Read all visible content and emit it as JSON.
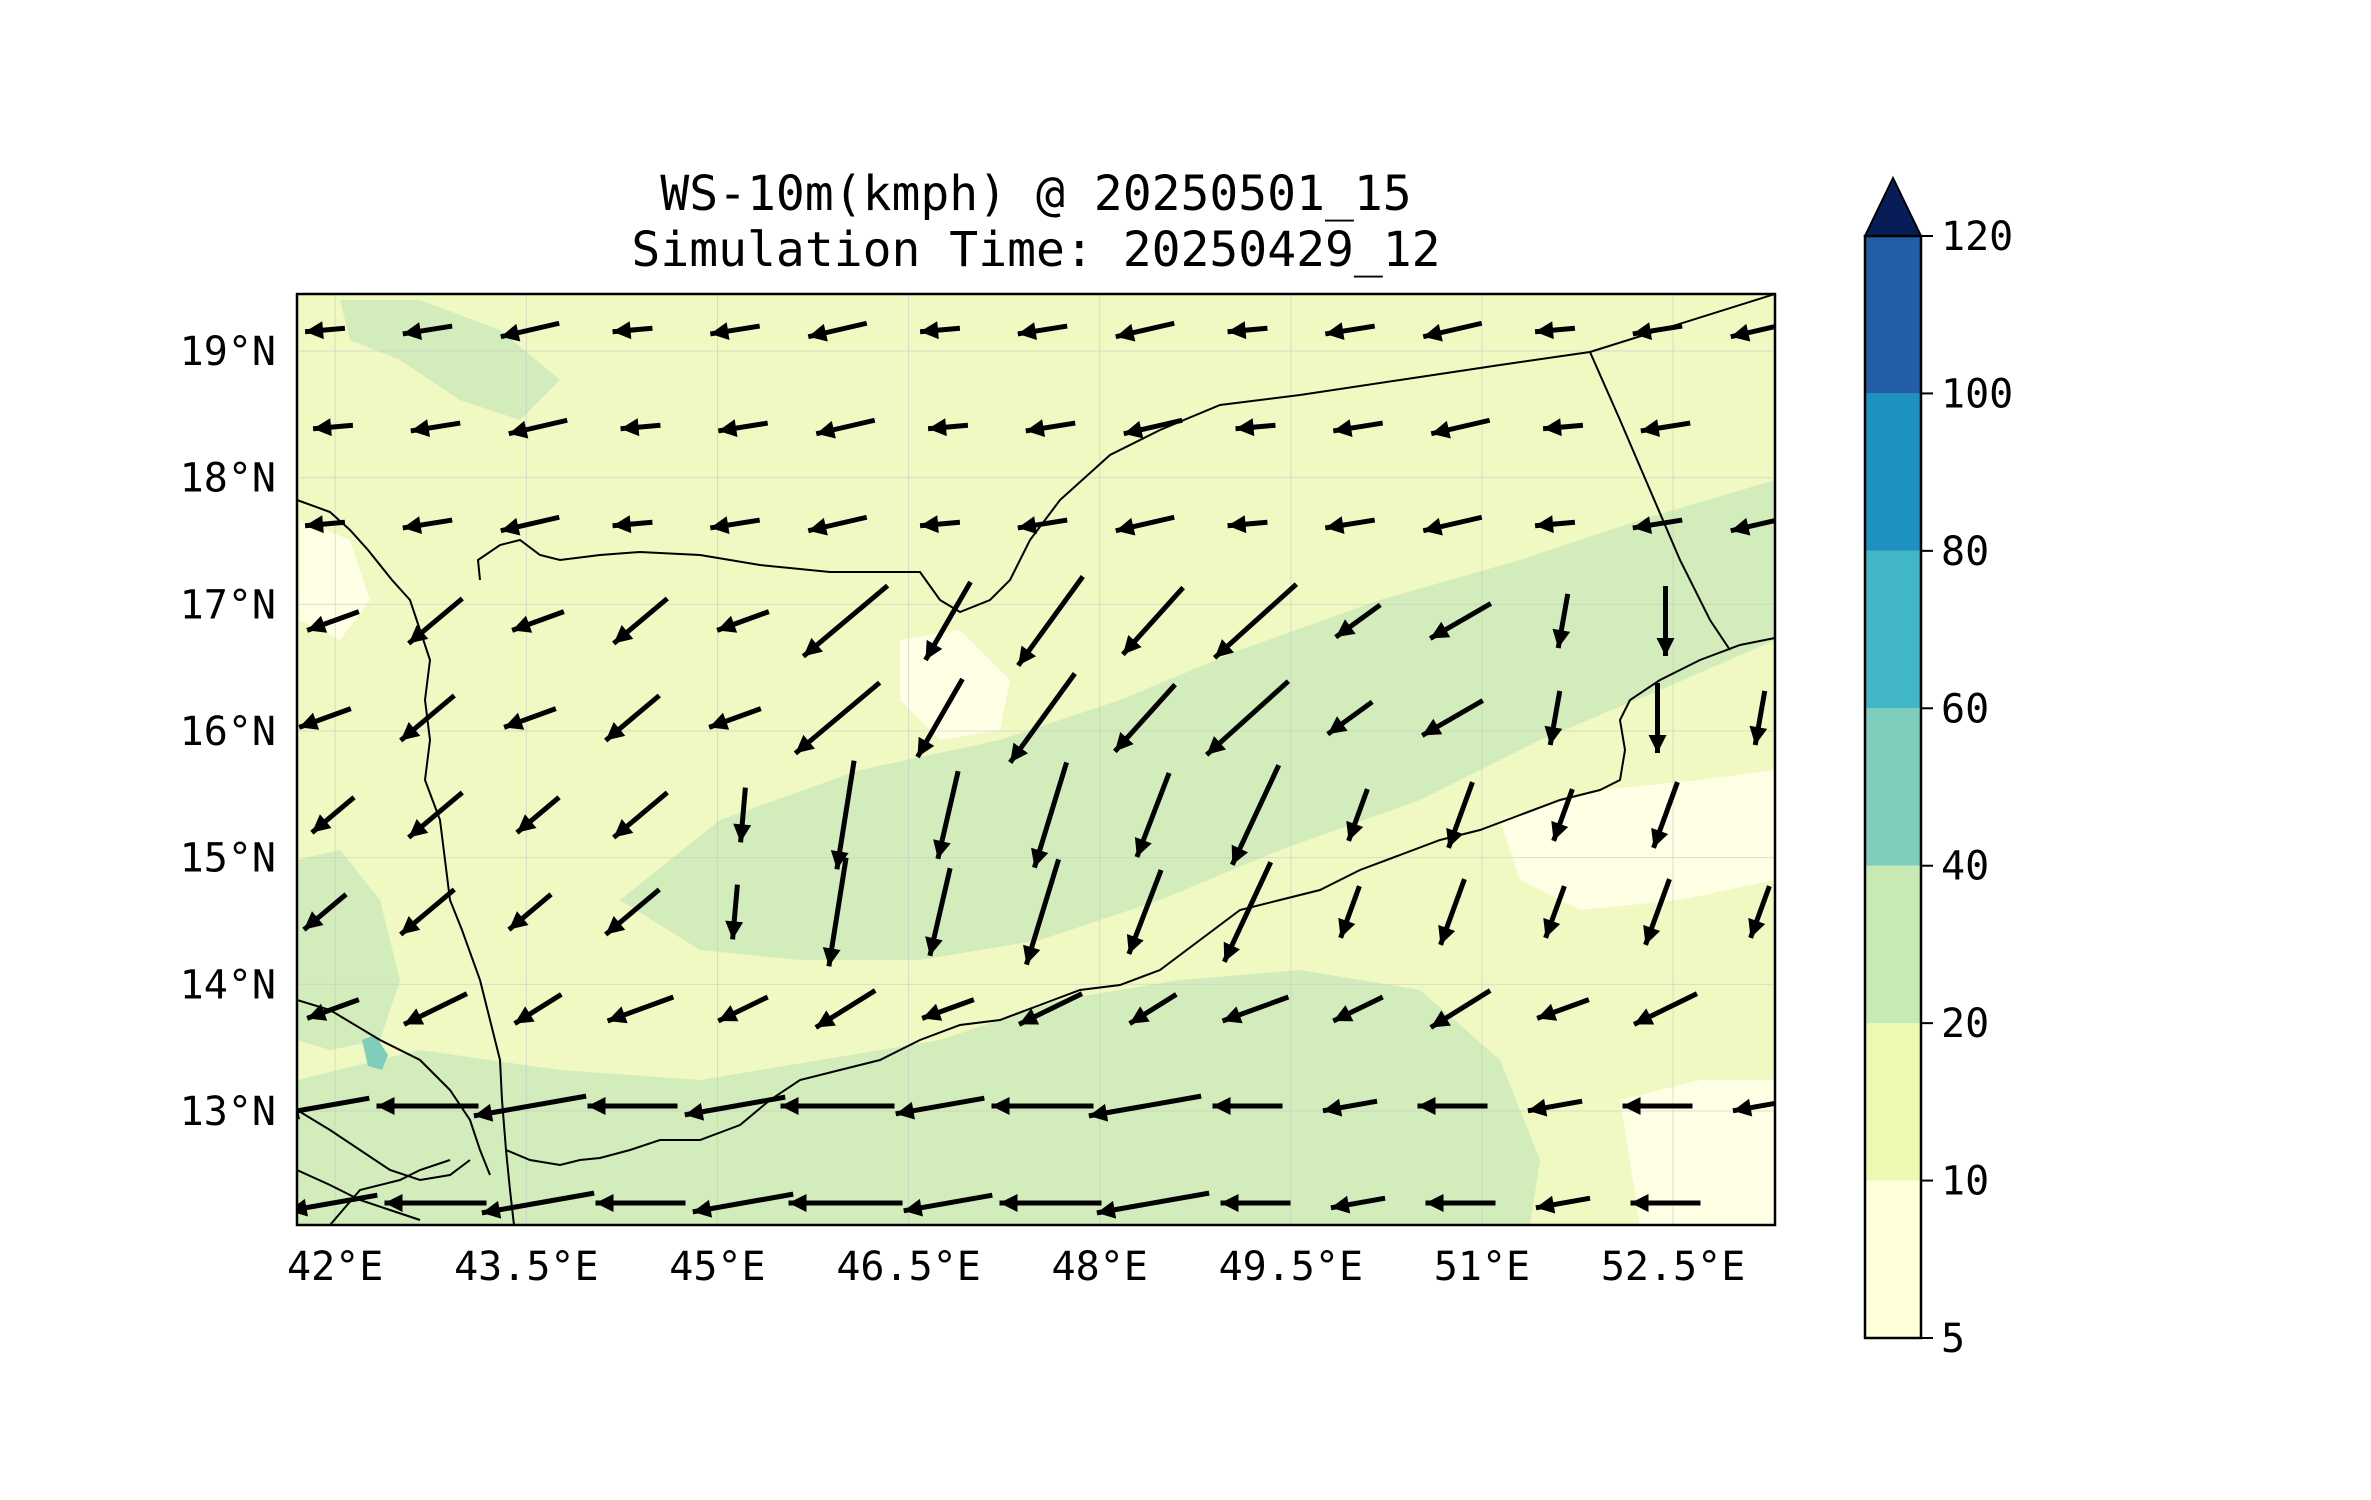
{
  "title": "WS-10m(kmph) @ 20250501_15",
  "subtitle": "Simulation Time: 20250429_12",
  "map": {
    "lon_range": [
      41.7,
      53.3
    ],
    "lat_range": [
      12.1,
      19.45
    ],
    "x_ticks": [
      "42°E",
      "43.5°E",
      "45°E",
      "46.5°E",
      "48°E",
      "49.5°E",
      "51°E",
      "52.5°E"
    ],
    "x_tick_values": [
      42,
      43.5,
      45,
      46.5,
      48,
      49.5,
      51,
      52.5
    ],
    "y_ticks": [
      "19°N",
      "18°N",
      "17°N",
      "16°N",
      "15°N",
      "14°N",
      "13°N"
    ],
    "y_tick_values": [
      19,
      18,
      17,
      16,
      15,
      14,
      13
    ],
    "gridlines": true
  },
  "colorbar": {
    "levels": [
      "5",
      "10",
      "20",
      "40",
      "60",
      "80",
      "100",
      "120"
    ],
    "colors": [
      "#ffffd9",
      "#edf8b1",
      "#c7e9b4",
      "#7fcdbb",
      "#41b6c4",
      "#1d91c0",
      "#225ea8",
      "#253494"
    ],
    "extend_color": "#081d58",
    "extend": "max"
  },
  "colors": {
    "land_base": "#f0f9c2",
    "calm": "#ffffe6",
    "moderate": "#d2ecbb",
    "strong": "#7fcdbb",
    "border": "#000000",
    "arrow": "#000000"
  }
}
